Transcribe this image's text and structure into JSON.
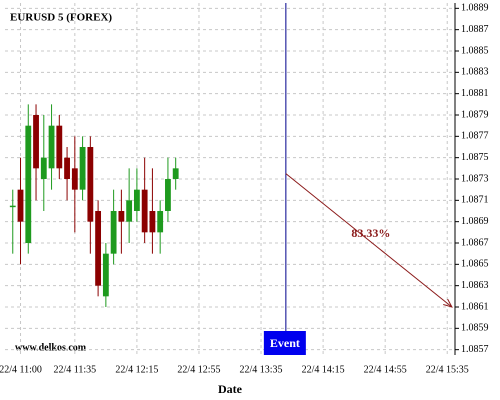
{
  "chart_data": {
    "type": "candlestick",
    "title": "EURUSD 5 (FOREX)",
    "watermark": "www.delkos.com",
    "x_label": "Date",
    "x": [
      655,
      660,
      665,
      670,
      675,
      680,
      685,
      690,
      695,
      700,
      705,
      710,
      715,
      720,
      725,
      730,
      735,
      740,
      745,
      750,
      755,
      760
    ],
    "open": [
      1.08705,
      1.0872,
      1.0867,
      1.0879,
      1.0873,
      1.0874,
      1.0878,
      1.0875,
      1.0874,
      1.0872,
      1.0876,
      1.087,
      1.0862,
      1.0866,
      1.087,
      1.0869,
      1.087,
      1.0872,
      1.087,
      1.0868,
      1.087,
      1.0873
    ],
    "high": [
      1.0872,
      1.0875,
      1.088,
      1.088,
      1.0879,
      1.088,
      1.0879,
      1.0876,
      1.0877,
      1.0877,
      1.0877,
      1.0871,
      1.0867,
      1.0872,
      1.0872,
      1.0874,
      1.0874,
      1.0875,
      1.0874,
      1.0871,
      1.0875,
      1.0875
    ],
    "low": [
      1.0866,
      1.0865,
      1.0866,
      1.0871,
      1.087,
      1.0872,
      1.0873,
      1.0871,
      1.0868,
      1.0871,
      1.0866,
      1.0862,
      1.0861,
      1.0865,
      1.0866,
      1.0867,
      1.0869,
      1.0867,
      1.0866,
      1.0866,
      1.0869,
      1.0872
    ],
    "close": [
      1.08705,
      1.0869,
      1.0878,
      1.0874,
      1.0875,
      1.0878,
      1.0874,
      1.0873,
      1.0872,
      1.0876,
      1.0869,
      1.0863,
      1.0866,
      1.087,
      1.0869,
      1.0871,
      1.0872,
      1.0868,
      1.0868,
      1.087,
      1.0873,
      1.0874
    ],
    "up_color": "#1e9a1e",
    "down_color": "#8b0000",
    "xlim": [
      650,
      940
    ],
    "xticks": [
      {
        "value": 660,
        "label": "22/4 11:00"
      },
      {
        "value": 695,
        "label": "22/4 11:35"
      },
      {
        "value": 735,
        "label": "22/4 12:15"
      },
      {
        "value": 775,
        "label": "22/4 12:55"
      },
      {
        "value": 815,
        "label": "22/4 13:35"
      },
      {
        "value": 855,
        "label": "22/4 14:15"
      },
      {
        "value": 895,
        "label": "22/4 14:55"
      },
      {
        "value": 935,
        "label": "22/4 15:35"
      }
    ],
    "ylim": [
      1.08565,
      1.08895
    ],
    "yticks": [
      1.0857,
      1.0859,
      1.0861,
      1.0863,
      1.0865,
      1.0867,
      1.0869,
      1.0871,
      1.0873,
      1.0875,
      1.0877,
      1.0879,
      1.0881,
      1.0883,
      1.0885,
      1.0887,
      1.0889
    ],
    "grid": true,
    "event": {
      "x": 831,
      "label": "Event",
      "color": "#00008b"
    },
    "projection": {
      "x": [
        831,
        938
      ],
      "y": [
        1.08735,
        1.0861
      ],
      "label": "83.33%",
      "color": "#8b1a1a"
    }
  }
}
